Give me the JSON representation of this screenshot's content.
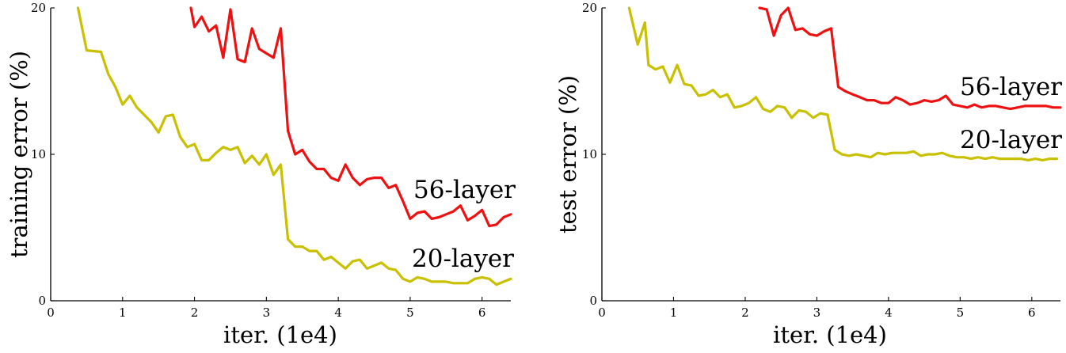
{
  "chart_data": [
    {
      "type": "line",
      "xlabel": "iter. (1e4)",
      "ylabel": "training error (%)",
      "xlim": [
        0,
        6.4
      ],
      "ylim": [
        0,
        20
      ],
      "xticks": [
        0,
        1,
        2,
        3,
        4,
        5,
        6
      ],
      "yticks": [
        0,
        10,
        20
      ],
      "grid": false,
      "legend": "inline labels at right",
      "series": [
        {
          "name": "56-layer",
          "color": "#ee1111",
          "x": [
            1.95,
            2.0,
            2.1,
            2.2,
            2.3,
            2.4,
            2.5,
            2.6,
            2.7,
            2.8,
            2.9,
            3.0,
            3.1,
            3.2,
            3.3,
            3.4,
            3.5,
            3.6,
            3.7,
            3.8,
            3.9,
            4.0,
            4.1,
            4.2,
            4.3,
            4.4,
            4.5,
            4.6,
            4.7,
            4.8,
            4.9,
            5.0,
            5.1,
            5.2,
            5.3,
            5.4,
            5.5,
            5.6,
            5.7,
            5.8,
            5.9,
            6.0,
            6.1,
            6.2,
            6.3,
            6.4
          ],
          "values": [
            20.0,
            18.7,
            19.4,
            18.4,
            18.8,
            16.6,
            19.9,
            16.5,
            16.3,
            18.6,
            17.2,
            16.9,
            16.6,
            18.6,
            11.6,
            10.0,
            10.3,
            9.5,
            9.0,
            9.0,
            8.4,
            8.2,
            9.3,
            8.4,
            7.9,
            8.3,
            8.4,
            8.4,
            7.7,
            7.9,
            6.8,
            5.6,
            6.0,
            6.1,
            5.6,
            5.7,
            5.9,
            6.1,
            6.5,
            5.5,
            5.8,
            6.2,
            5.1,
            5.2,
            5.7,
            5.9
          ]
        },
        {
          "name": "20-layer",
          "color": "#c8c000",
          "x": [
            0.38,
            0.5,
            0.7,
            0.8,
            0.9,
            1.0,
            1.1,
            1.2,
            1.3,
            1.4,
            1.5,
            1.6,
            1.7,
            1.8,
            1.9,
            2.0,
            2.1,
            2.2,
            2.3,
            2.4,
            2.5,
            2.6,
            2.7,
            2.8,
            2.9,
            3.0,
            3.1,
            3.2,
            3.3,
            3.4,
            3.5,
            3.6,
            3.7,
            3.8,
            3.9,
            4.0,
            4.1,
            4.2,
            4.3,
            4.4,
            4.5,
            4.6,
            4.7,
            4.8,
            4.9,
            5.0,
            5.1,
            5.2,
            5.3,
            5.4,
            5.5,
            5.6,
            5.7,
            5.8,
            5.9,
            6.0,
            6.1,
            6.2,
            6.3,
            6.4
          ],
          "values": [
            20.0,
            17.1,
            17.0,
            15.5,
            14.6,
            13.4,
            14.0,
            13.2,
            12.7,
            12.2,
            11.5,
            12.6,
            12.7,
            11.2,
            10.5,
            10.7,
            9.6,
            9.6,
            10.1,
            10.5,
            10.3,
            10.5,
            9.4,
            9.9,
            9.3,
            10.0,
            8.6,
            9.3,
            4.2,
            3.7,
            3.7,
            3.4,
            3.4,
            2.8,
            3.0,
            2.6,
            2.2,
            2.7,
            2.8,
            2.2,
            2.4,
            2.6,
            2.2,
            2.1,
            1.5,
            1.3,
            1.6,
            1.5,
            1.3,
            1.3,
            1.3,
            1.2,
            1.2,
            1.2,
            1.5,
            1.6,
            1.5,
            1.1,
            1.3,
            1.5
          ]
        }
      ]
    },
    {
      "type": "line",
      "xlabel": "iter. (1e4)",
      "ylabel": "test error (%)",
      "xlim": [
        0,
        6.4
      ],
      "ylim": [
        0,
        20
      ],
      "xticks": [
        0,
        1,
        2,
        3,
        4,
        5,
        6
      ],
      "yticks": [
        0,
        10,
        20
      ],
      "grid": false,
      "legend": "inline labels at right",
      "series": [
        {
          "name": "56-layer",
          "color": "#ee1111",
          "x": [
            2.2,
            2.3,
            2.4,
            2.5,
            2.6,
            2.7,
            2.8,
            2.9,
            3.0,
            3.1,
            3.2,
            3.3,
            3.4,
            3.5,
            3.6,
            3.7,
            3.8,
            3.9,
            4.0,
            4.1,
            4.2,
            4.3,
            4.4,
            4.5,
            4.6,
            4.7,
            4.8,
            4.9,
            5.0,
            5.1,
            5.2,
            5.3,
            5.4,
            5.5,
            5.6,
            5.7,
            5.8,
            5.9,
            6.0,
            6.1,
            6.2,
            6.3,
            6.4
          ],
          "values": [
            20.0,
            19.9,
            18.1,
            19.5,
            20.0,
            18.5,
            18.6,
            18.2,
            18.1,
            18.4,
            18.6,
            14.6,
            14.3,
            14.1,
            13.9,
            13.7,
            13.7,
            13.5,
            13.5,
            13.9,
            13.7,
            13.4,
            13.5,
            13.7,
            13.6,
            13.7,
            14.0,
            13.4,
            13.3,
            13.2,
            13.4,
            13.2,
            13.3,
            13.3,
            13.2,
            13.1,
            13.2,
            13.3,
            13.3,
            13.3,
            13.3,
            13.2,
            13.2
          ]
        },
        {
          "name": "20-layer",
          "color": "#c8c000",
          "x": [
            0.38,
            0.5,
            0.6,
            0.65,
            0.75,
            0.85,
            0.95,
            1.05,
            1.15,
            1.25,
            1.35,
            1.45,
            1.55,
            1.65,
            1.75,
            1.85,
            1.95,
            2.05,
            2.15,
            2.25,
            2.35,
            2.45,
            2.55,
            2.65,
            2.75,
            2.85,
            2.95,
            3.05,
            3.15,
            3.25,
            3.35,
            3.45,
            3.55,
            3.65,
            3.75,
            3.85,
            3.95,
            4.05,
            4.15,
            4.25,
            4.35,
            4.45,
            4.55,
            4.65,
            4.75,
            4.85,
            4.95,
            5.05,
            5.15,
            5.25,
            5.35,
            5.45,
            5.55,
            5.65,
            5.75,
            5.85,
            5.95,
            6.05,
            6.15,
            6.25,
            6.35
          ],
          "values": [
            20.0,
            17.5,
            19.0,
            16.1,
            15.8,
            16.0,
            14.9,
            16.1,
            14.8,
            14.7,
            14.0,
            14.1,
            14.4,
            13.9,
            14.1,
            13.2,
            13.3,
            13.5,
            13.9,
            13.1,
            12.9,
            13.3,
            13.2,
            12.5,
            13.0,
            12.9,
            12.5,
            12.8,
            12.7,
            10.3,
            10.0,
            9.9,
            10.0,
            9.9,
            9.8,
            10.1,
            10.0,
            10.1,
            10.1,
            10.1,
            10.2,
            9.9,
            10.0,
            10.0,
            10.1,
            9.9,
            9.8,
            9.8,
            9.7,
            9.8,
            9.7,
            9.8,
            9.7,
            9.7,
            9.7,
            9.7,
            9.6,
            9.7,
            9.6,
            9.7,
            9.7
          ]
        }
      ]
    }
  ]
}
